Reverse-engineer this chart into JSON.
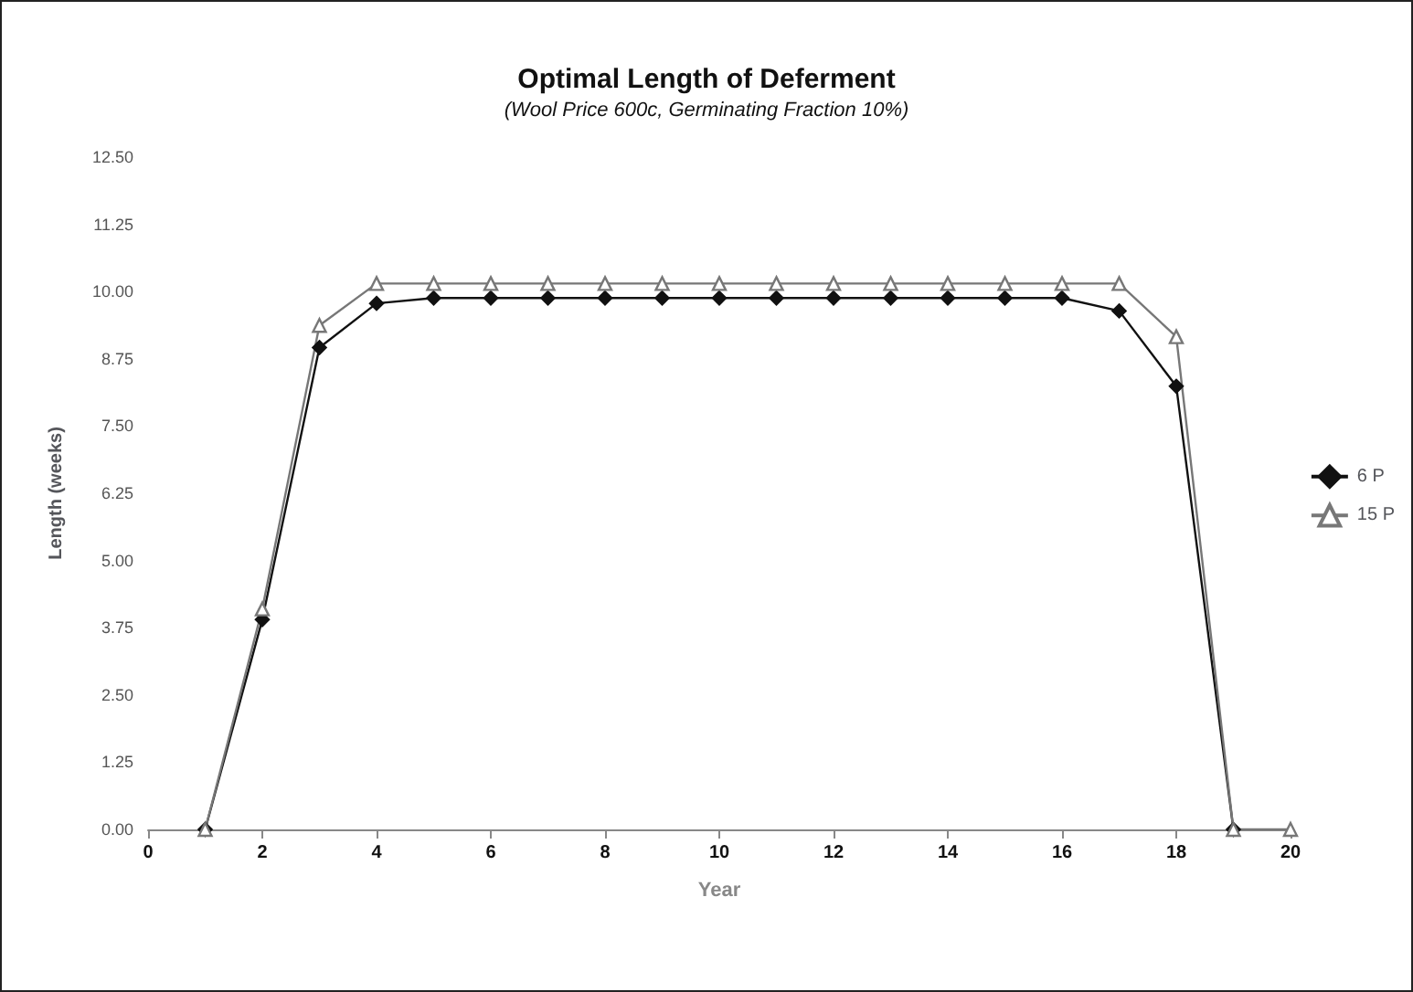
{
  "chart_data": {
    "type": "line",
    "title": "Optimal Length of Deferment",
    "subtitle": "(Wool Price 600c, Germinating Fraction 10%)",
    "xlabel": "Year",
    "ylabel": "Length (weeks)",
    "x": [
      1,
      2,
      3,
      4,
      5,
      6,
      7,
      8,
      9,
      10,
      11,
      12,
      13,
      14,
      15,
      16,
      17,
      18,
      19,
      20
    ],
    "series": [
      {
        "name": "6 P",
        "color": "#111111",
        "marker": "diamond",
        "values": [
          0,
          3.9,
          8.96,
          9.78,
          9.88,
          9.88,
          9.88,
          9.88,
          9.88,
          9.88,
          9.88,
          9.88,
          9.88,
          9.88,
          9.88,
          9.88,
          9.64,
          8.24,
          0,
          null
        ]
      },
      {
        "name": "15 P",
        "color": "#777777",
        "marker": "triangle",
        "values": [
          0,
          4.1,
          9.37,
          10.15,
          10.15,
          10.15,
          10.15,
          10.15,
          10.15,
          10.15,
          10.15,
          10.15,
          10.15,
          10.15,
          10.15,
          10.15,
          10.15,
          9.16,
          0,
          0
        ]
      }
    ],
    "xlim": [
      0,
      20
    ],
    "xticks": [
      0,
      2,
      4,
      6,
      8,
      10,
      12,
      14,
      16,
      18,
      20
    ],
    "ylim": [
      0,
      12.5
    ],
    "yticks": [
      {
        "value": 0,
        "label": "0.00"
      },
      {
        "value": 1.25,
        "label": "1.25"
      },
      {
        "value": 2.5,
        "label": "2.50"
      },
      {
        "value": 3.75,
        "label": "3.75"
      },
      {
        "value": 5,
        "label": "5.00"
      },
      {
        "value": 6.25,
        "label": "6.25"
      },
      {
        "value": 7.5,
        "label": "7.50"
      },
      {
        "value": 8.75,
        "label": "8.75"
      },
      {
        "value": 10,
        "label": "10.00"
      },
      {
        "value": 11.25,
        "label": "11.25"
      },
      {
        "value": 12.5,
        "label": "12.50"
      }
    ],
    "grid": false,
    "legend": "right"
  }
}
